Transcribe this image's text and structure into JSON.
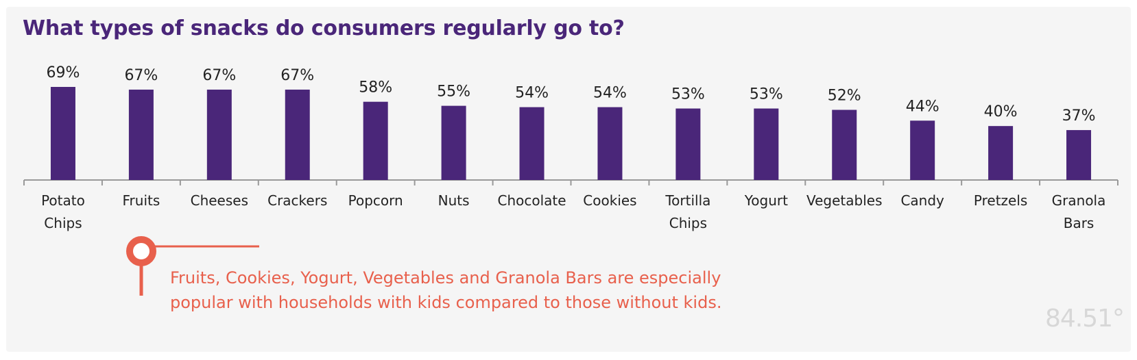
{
  "title": "What types of snacks do consumers regularly go to?",
  "chart_data": {
    "type": "bar",
    "title": "What types of snacks do consumers regularly go to?",
    "categories": [
      [
        "Potato",
        "Chips"
      ],
      [
        "Fruits"
      ],
      [
        "Cheeses"
      ],
      [
        "Crackers"
      ],
      [
        "Popcorn"
      ],
      [
        "Nuts"
      ],
      [
        "Chocolate"
      ],
      [
        "Cookies"
      ],
      [
        "Tortilla",
        "Chips"
      ],
      [
        "Yogurt"
      ],
      [
        "Vegetables"
      ],
      [
        "Candy"
      ],
      [
        "Pretzels"
      ],
      [
        "Granola",
        "Bars"
      ]
    ],
    "values": [
      69,
      67,
      67,
      67,
      58,
      55,
      54,
      54,
      53,
      53,
      52,
      44,
      40,
      37
    ],
    "value_labels": [
      "69%",
      "67%",
      "67%",
      "67%",
      "58%",
      "55%",
      "54%",
      "54%",
      "53%",
      "53%",
      "52%",
      "44%",
      "40%",
      "37%"
    ],
    "ylim": [
      0,
      69
    ],
    "xlabel": "",
    "ylabel": "",
    "grid": false,
    "bar_color": "#4a2679",
    "axis_color": "#999999"
  },
  "annotation": {
    "text": "Fruits, Cookies, Yogurt, Vegetables and Granola Bars are especially popular with households with kids compared to those without kids.",
    "color": "#e8604c"
  },
  "logo": {
    "text": "84.51°"
  },
  "colors": {
    "title": "#4a2679",
    "background": "#f5f5f5",
    "accent": "#e8604c"
  }
}
